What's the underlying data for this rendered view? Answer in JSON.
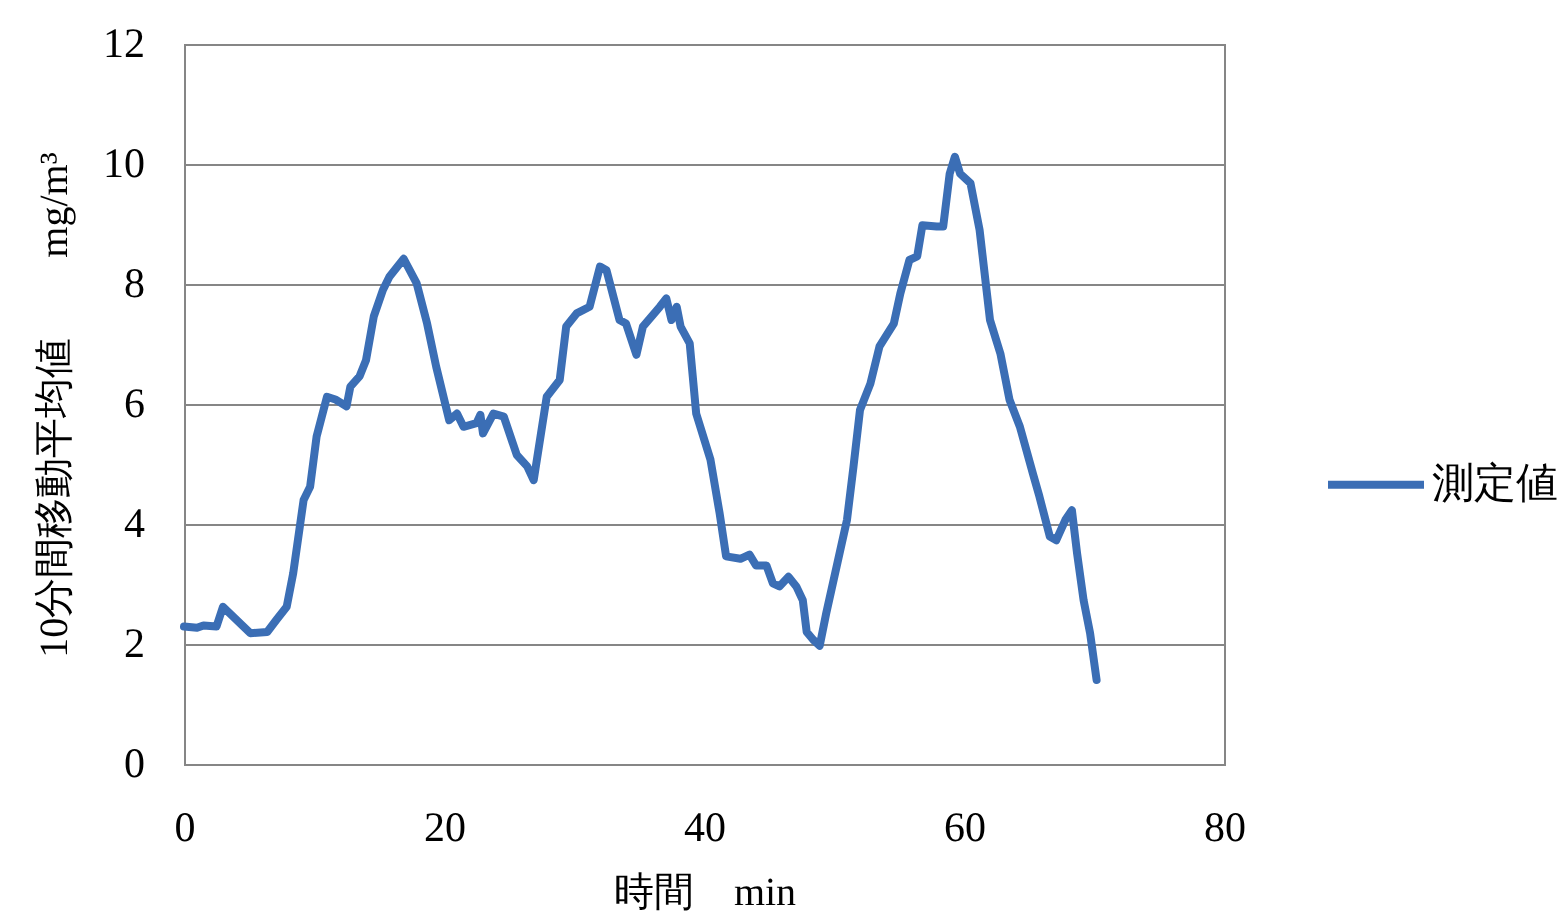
{
  "chart_data": {
    "type": "line",
    "xlabel": "時間　min",
    "ylabel": "10分間移動平均値　　mg/m³",
    "x": [
      0,
      1.0,
      1.5,
      2.5,
      3.0,
      5.1,
      6.4,
      7.1,
      7.9,
      8.4,
      9.2,
      9.7,
      10.2,
      11.0,
      11.7,
      12.5,
      12.8,
      13.5,
      14.0,
      14.6,
      15.3,
      15.8,
      16.9,
      17.9,
      18.7,
      19.4,
      20.4,
      21.0,
      21.5,
      22.5,
      22.8,
      23.0,
      23.8,
      24.6,
      25.6,
      26.4,
      26.9,
      27.9,
      28.9,
      29.4,
      30.2,
      31.2,
      32.0,
      32.5,
      33.5,
      34.0,
      34.8,
      35.3,
      36.6,
      37.1,
      37.5,
      37.9,
      38.2,
      38.9,
      39.4,
      40.5,
      41.2,
      41.7,
      42.8,
      43.5,
      44.0,
      44.8,
      45.3,
      45.8,
      46.5,
      47.1,
      47.6,
      47.9,
      48.4,
      48.9,
      49.4,
      50.2,
      51.0,
      51.5,
      52.0,
      52.8,
      53.5,
      54.6,
      55.1,
      55.8,
      56.4,
      56.8,
      57.9,
      58.4,
      58.9,
      59.3,
      59.7,
      60.5,
      61.2,
      62.0,
      62.8,
      63.5,
      64.3,
      65.3,
      65.8,
      66.6,
      67.1,
      67.8,
      68.3,
      68.7,
      69.2,
      69.7,
      70.2
    ],
    "series": [
      {
        "name": "測定値",
        "color": "#3b6eb5",
        "values": [
          2.29,
          2.27,
          2.31,
          2.29,
          2.62,
          2.18,
          2.2,
          2.4,
          2.62,
          3.18,
          4.4,
          4.62,
          5.46,
          6.12,
          6.07,
          5.96,
          6.29,
          6.46,
          6.73,
          7.46,
          7.9,
          8.12,
          8.42,
          8.01,
          7.34,
          6.62,
          5.73,
          5.84,
          5.62,
          5.68,
          5.82,
          5.51,
          5.84,
          5.79,
          5.15,
          4.96,
          4.73,
          6.12,
          6.4,
          7.29,
          7.51,
          7.62,
          8.29,
          8.23,
          7.4,
          7.34,
          6.82,
          7.29,
          7.62,
          7.76,
          7.4,
          7.62,
          7.29,
          7.01,
          5.84,
          5.07,
          4.18,
          3.46,
          3.42,
          3.49,
          3.31,
          3.31,
          3.01,
          2.96,
          3.12,
          2.96,
          2.73,
          2.2,
          2.07,
          1.97,
          2.51,
          3.29,
          4.07,
          4.96,
          5.9,
          6.34,
          6.96,
          7.34,
          7.84,
          8.4,
          8.46,
          8.98,
          8.96,
          8.96,
          9.84,
          10.12,
          9.84,
          9.68,
          8.9,
          7.4,
          6.84,
          6.07,
          5.62,
          4.84,
          4.46,
          3.79,
          3.73,
          4.07,
          4.23,
          3.51,
          2.73,
          2.18,
          1.4
        ]
      }
    ],
    "xlim": [
      0,
      80
    ],
    "xticks": [
      0,
      20,
      40,
      60,
      80
    ],
    "ylim": [
      0,
      12
    ],
    "yticks": [
      0,
      2,
      4,
      6,
      8,
      10,
      12
    ],
    "grid": "y",
    "legend": "right",
    "marker": "none",
    "line_style": "solid"
  }
}
